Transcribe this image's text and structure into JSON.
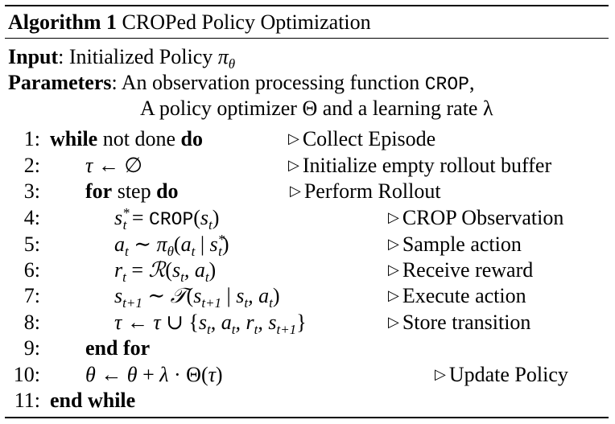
{
  "algorithm": {
    "label": "Algorithm 1",
    "title": "CROPed Policy Optimization"
  },
  "input": {
    "label": "Input",
    "text": "Initialized Policy "
  },
  "parameters": {
    "label": "Parameters",
    "line1_prefix": "An observation processing function ",
    "line1_func": "CROP",
    "line1_suffix": ",",
    "line2": "A policy optimizer Θ and a learning rate λ"
  },
  "lines": [
    {
      "n": "1:",
      "comment": "Collect Episode"
    },
    {
      "n": "2:",
      "comment": "Initialize empty rollout buffer"
    },
    {
      "n": "3:",
      "comment": "Perform Rollout"
    },
    {
      "n": "4:",
      "comment": "CROP Observation"
    },
    {
      "n": "5:",
      "comment": "Sample action"
    },
    {
      "n": "6:",
      "comment": "Receive reward"
    },
    {
      "n": "7:",
      "comment": "Execute action"
    },
    {
      "n": "8:",
      "comment": "Store transition"
    },
    {
      "n": "9:",
      "comment": ""
    },
    {
      "n": "10:",
      "comment": "Update Policy"
    },
    {
      "n": "11:",
      "comment": ""
    }
  ],
  "keywords": {
    "while": "while",
    "not_done": " not done ",
    "do": "do",
    "for": "for",
    "step": " step ",
    "end_for": "end for",
    "end_while": "end while"
  },
  "comment_marker": "▷"
}
